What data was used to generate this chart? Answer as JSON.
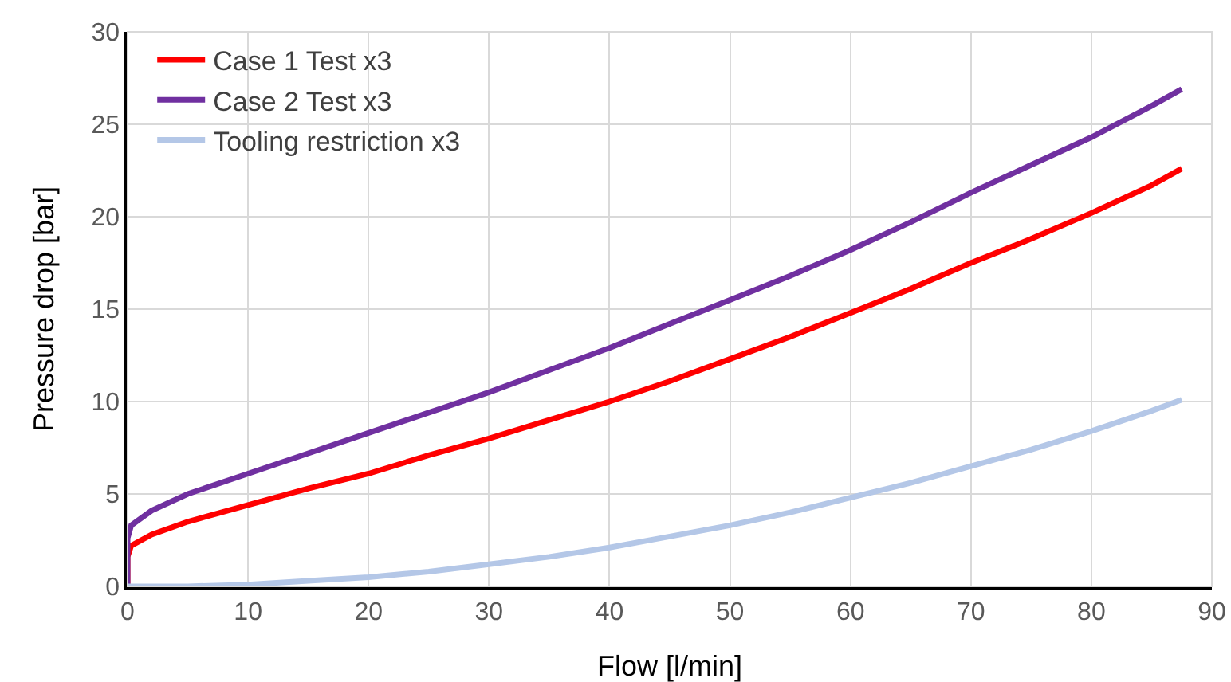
{
  "chart_data": {
    "type": "line",
    "xlabel": "Flow [l/min]",
    "ylabel": "Pressure drop [bar]",
    "xlim": [
      0,
      90
    ],
    "xticks": [
      0,
      10,
      20,
      30,
      40,
      50,
      60,
      70,
      80,
      90
    ],
    "ylim": [
      0,
      30
    ],
    "yticks": [
      0,
      5,
      10,
      15,
      20,
      25,
      30
    ],
    "grid": true,
    "legend": "top left",
    "marker": "none",
    "line_style": "solid",
    "series": [
      {
        "name": "Case 1 Test x3",
        "color": "#ff0000",
        "x": [
          0,
          0,
          0.3,
          2,
          5,
          10,
          15,
          20,
          25,
          30,
          35,
          40,
          45,
          50,
          55,
          60,
          65,
          70,
          75,
          80,
          85,
          87.5
        ],
        "values": [
          0,
          1.6,
          2.2,
          2.8,
          3.5,
          4.4,
          5.3,
          6.1,
          7.1,
          8.0,
          9.0,
          10.0,
          11.1,
          12.3,
          13.5,
          14.8,
          16.1,
          17.5,
          18.8,
          20.2,
          21.7,
          22.6
        ]
      },
      {
        "name": "Case 2 Test x3",
        "color": "#7030a0",
        "x": [
          0,
          0,
          0.3,
          2,
          5,
          10,
          15,
          20,
          25,
          30,
          35,
          40,
          45,
          50,
          55,
          60,
          65,
          70,
          75,
          80,
          85,
          87.5
        ],
        "values": [
          0,
          2.6,
          3.3,
          4.1,
          5.0,
          6.1,
          7.2,
          8.3,
          9.4,
          10.5,
          11.7,
          12.9,
          14.2,
          15.5,
          16.8,
          18.2,
          19.7,
          21.3,
          22.8,
          24.3,
          26.0,
          26.9
        ]
      },
      {
        "name": "Tooling restriction x3",
        "color": "#b4c7e7",
        "x": [
          0,
          5,
          10,
          15,
          20,
          25,
          30,
          35,
          40,
          45,
          50,
          55,
          60,
          65,
          70,
          75,
          80,
          85,
          87.5
        ],
        "values": [
          0,
          0,
          0.1,
          0.3,
          0.5,
          0.8,
          1.2,
          1.6,
          2.1,
          2.7,
          3.3,
          4.0,
          4.8,
          5.6,
          6.5,
          7.4,
          8.4,
          9.5,
          10.1
        ]
      }
    ]
  }
}
